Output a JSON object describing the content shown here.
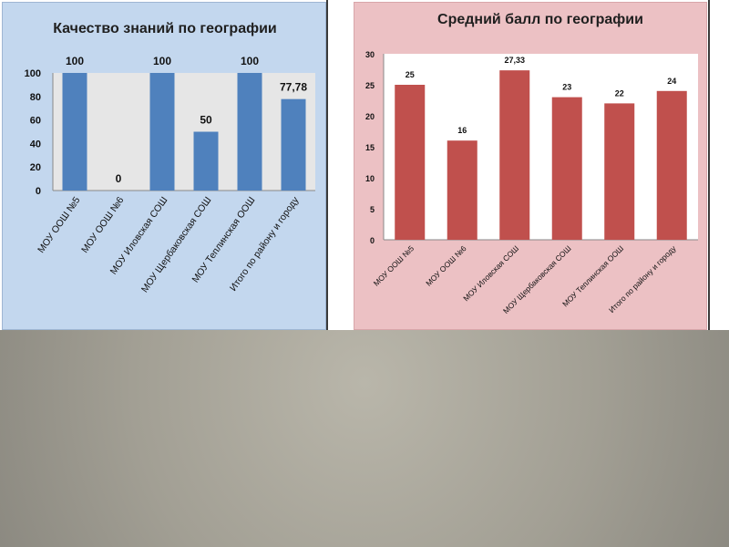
{
  "chart_data": [
    {
      "type": "bar",
      "title": "Качество знаний по географии",
      "categories": [
        "МОУ ООШ №5",
        "МОУ ООШ №6",
        "МОУ Иловская СОШ",
        "МОУ Щербаковская СОШ",
        "МОУ Теплинская ООШ",
        "Итого по району и городу"
      ],
      "values": [
        100,
        0,
        100,
        50,
        100,
        77.78
      ],
      "data_labels": [
        "100",
        "0",
        "100",
        "50",
        "100",
        "77,78"
      ],
      "ylim": [
        0,
        100
      ],
      "yticks": [
        0,
        20,
        40,
        60,
        80,
        100
      ],
      "bar_color": "#4f81bd",
      "background": "#c3d7ee",
      "plot_background": "#e6e6e6",
      "grid": false
    },
    {
      "type": "bar",
      "title": "Средний балл по географии",
      "categories": [
        "МОУ ООШ №5",
        "МОУ ООШ №6",
        "МОУ Иловская СОШ",
        "МОУ Щербаковская СОШ",
        "МОУ Теплинская ООШ",
        "Итого по району и городу"
      ],
      "values": [
        25,
        16,
        27.33,
        23,
        22,
        24
      ],
      "data_labels": [
        "25",
        "16",
        "27,33",
        "23",
        "22",
        "24"
      ],
      "ylim": [
        0,
        30
      ],
      "yticks": [
        0,
        5,
        10,
        15,
        20,
        25,
        30
      ],
      "bar_color": "#c0504d",
      "background": "#ecc1c4",
      "plot_background": "#ffffff",
      "grid": false
    }
  ]
}
